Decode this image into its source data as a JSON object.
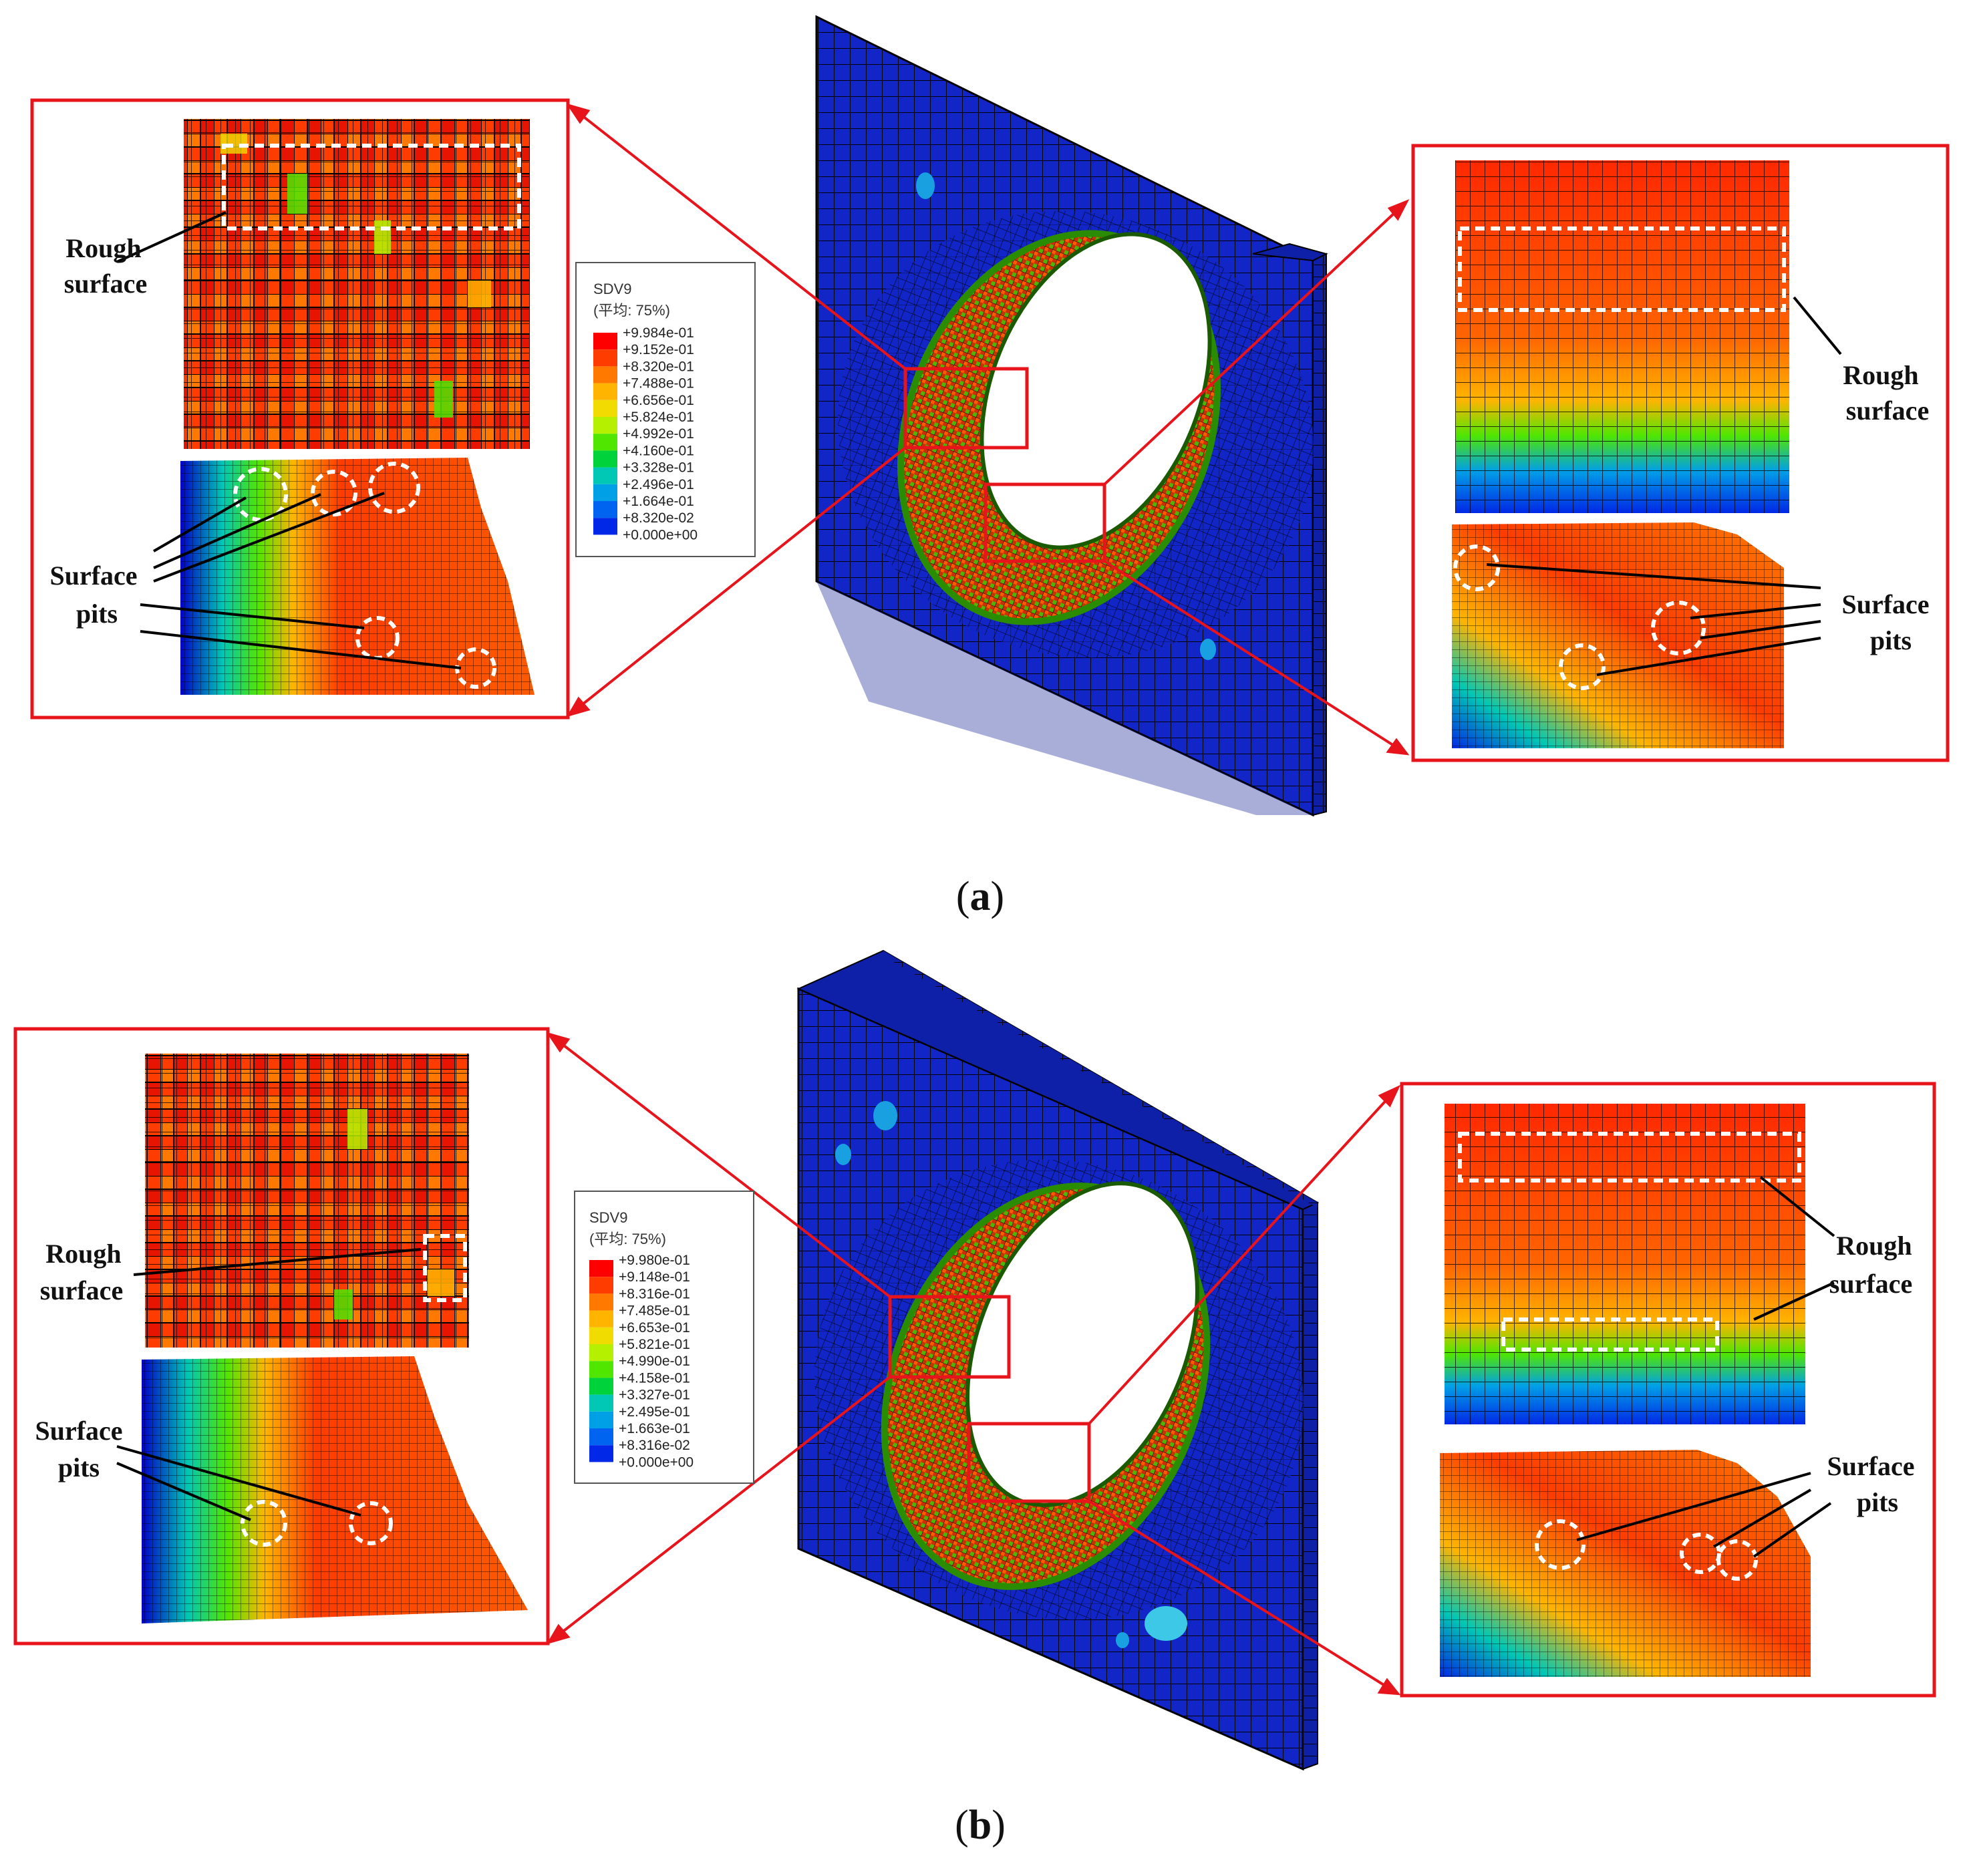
{
  "panels": [
    {
      "id": "a",
      "caption": "a",
      "legend": {
        "title": "SDV9",
        "subtitle": "(平均: 75%)",
        "values": [
          "+9.984e-01",
          "+9.152e-01",
          "+8.320e-01",
          "+7.488e-01",
          "+6.656e-01",
          "+5.824e-01",
          "+4.992e-01",
          "+4.160e-01",
          "+3.328e-01",
          "+2.496e-01",
          "+1.664e-01",
          "+8.320e-02",
          "+0.000e+00"
        ]
      },
      "left_labels": {
        "rough": [
          "Rough",
          "surface"
        ],
        "pits": [
          "Surface",
          "pits"
        ]
      },
      "right_labels": {
        "rough": [
          "Rough",
          "surface"
        ],
        "pits": [
          "Surface",
          "pits"
        ]
      }
    },
    {
      "id": "b",
      "caption": "b",
      "legend": {
        "title": "SDV9",
        "subtitle": "(平均: 75%)",
        "values": [
          "+9.980e-01",
          "+9.148e-01",
          "+8.316e-01",
          "+7.485e-01",
          "+6.653e-01",
          "+5.821e-01",
          "+4.990e-01",
          "+4.158e-01",
          "+3.327e-01",
          "+2.495e-01",
          "+1.663e-01",
          "+8.316e-02",
          "+0.000e+00"
        ]
      },
      "left_labels": {
        "rough": [
          "Rough",
          "surface"
        ],
        "pits": [
          "Surface",
          "pits"
        ]
      },
      "right_labels": {
        "rough": [
          "Rough",
          "surface"
        ],
        "pits": [
          "Surface",
          "pits"
        ]
      }
    }
  ],
  "colors": {
    "plate_blue": "#1226c8",
    "frame_red": "#e8141c",
    "legend_scale": [
      "#ff0000",
      "#ff3c00",
      "#ff7800",
      "#ffb400",
      "#f0dc00",
      "#b4f000",
      "#50e600",
      "#00d23c",
      "#00c8b4",
      "#00a0e6",
      "#0064f0",
      "#0028e6",
      "#0000c8"
    ]
  }
}
